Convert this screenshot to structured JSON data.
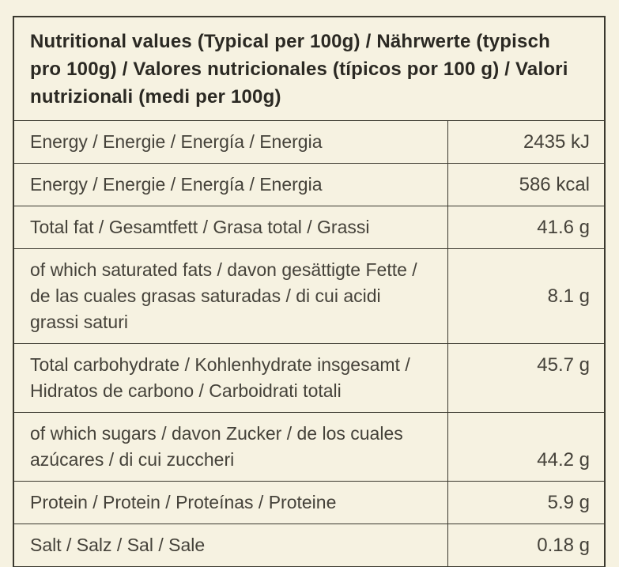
{
  "table": {
    "title": "Nutritional values (Typical per 100g) / Nährwerte (typisch pro 100g) / Valores nutricionales (típicos por 100 g) / Valori nutrizionali (medi per 100g)",
    "rows": [
      {
        "label": "Energy / Energie / Energía / Energia",
        "value": "2435 kJ"
      },
      {
        "label": "Energy / Energie / Energía / Energia",
        "value": "586 kcal"
      },
      {
        "label": "Total fat / Gesamtfett / Grasa total / Grassi",
        "value": "41.6 g"
      },
      {
        "label": "of which saturated fats / davon gesättigte Fette / de las cuales grasas saturadas / di cui acidi grassi saturi",
        "value": "8.1 g"
      },
      {
        "label": "Total carbohydrate / Kohlenhydrate insgesamt / Hidratos de carbono / Carboidrati totali",
        "value": "45.7 g"
      },
      {
        "label": "of which sugars / davon Zucker / de los cuales azúcares / di cui zuccheri",
        "value": "44.2 g"
      },
      {
        "label": "Protein / Protein / Proteínas / Proteine",
        "value": "5.9 g"
      },
      {
        "label": "Salt / Salz / Sal / Sale",
        "value": "0.18 g"
      }
    ],
    "colors": {
      "background": "#f6f2e1",
      "border": "#3a382e",
      "text": "#45423a",
      "title_text": "#2b2923"
    }
  }
}
